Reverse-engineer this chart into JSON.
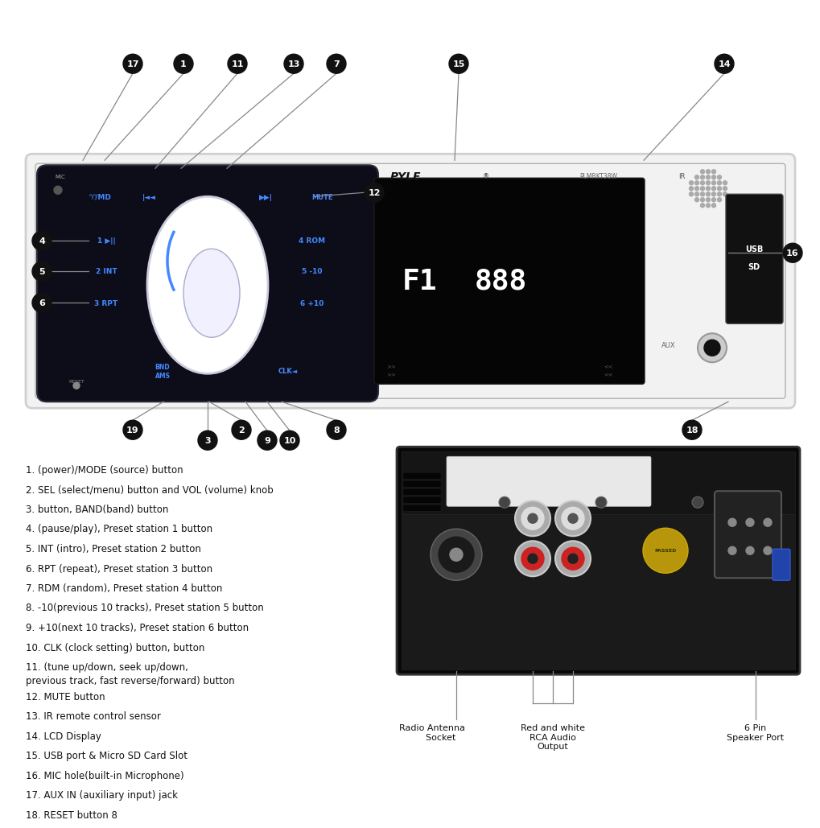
{
  "bg_color": "#ffffff",
  "legend_items": [
    "1. (power)/MODE (source) button",
    "2. SEL (select/menu) button and VOL (volume) knob",
    "3. button, BAND(band) button",
    "4. (pause/play), Preset station 1 button",
    "5. INT (intro), Preset station 2 button",
    "6. RPT (repeat), Preset station 3 button",
    "7. RDM (random), Preset station 4 button",
    "8. -10(previous 10 tracks), Preset station 5 button",
    "9. +10(next 10 tracks), Preset station 6 button",
    "10. CLK (clock setting) button, button",
    "11. (tune up/down, seek up/down,\nprevious track, fast reverse/forward) button",
    "12. MUTE button",
    "13. IR remote control sensor",
    "14. LCD Display",
    "15. USB port & Micro SD Card Slot",
    "16. MIC hole(built-in Microphone)",
    "17. AUX IN (auxiliary input) jack",
    "18. RESET button 8"
  ]
}
